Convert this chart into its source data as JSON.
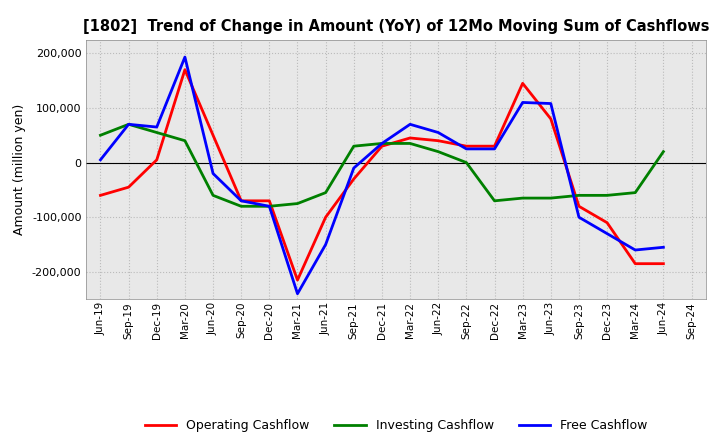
{
  "title": "[1802]  Trend of Change in Amount (YoY) of 12Mo Moving Sum of Cashflows",
  "ylabel": "Amount (million yen)",
  "xlabels": [
    "Jun-19",
    "Sep-19",
    "Dec-19",
    "Mar-20",
    "Jun-20",
    "Sep-20",
    "Dec-20",
    "Mar-21",
    "Jun-21",
    "Sep-21",
    "Dec-21",
    "Mar-22",
    "Jun-22",
    "Sep-22",
    "Dec-22",
    "Mar-23",
    "Jun-23",
    "Sep-23",
    "Dec-23",
    "Mar-24",
    "Jun-24",
    "Sep-24"
  ],
  "operating": [
    -60000,
    -45000,
    5000,
    170000,
    50000,
    -70000,
    -70000,
    -215000,
    -100000,
    -30000,
    30000,
    45000,
    40000,
    30000,
    30000,
    145000,
    80000,
    -80000,
    -110000,
    -185000,
    -185000,
    null
  ],
  "investing": [
    50000,
    70000,
    55000,
    40000,
    -60000,
    -80000,
    -80000,
    -75000,
    -55000,
    30000,
    35000,
    35000,
    20000,
    0,
    -70000,
    -65000,
    -65000,
    -60000,
    -60000,
    -55000,
    20000,
    null
  ],
  "free": [
    5000,
    70000,
    65000,
    193000,
    -20000,
    -70000,
    -80000,
    -240000,
    -150000,
    -10000,
    35000,
    70000,
    55000,
    25000,
    25000,
    110000,
    108000,
    -100000,
    -130000,
    -160000,
    -155000,
    null
  ],
  "colors": {
    "operating": "#ff0000",
    "investing": "#008000",
    "free": "#0000ff"
  },
  "ylim": [
    -250000,
    225000
  ],
  "yticks": [
    -200000,
    -100000,
    0,
    100000,
    200000
  ],
  "background": "#ffffff",
  "plot_bg": "#e8e8e8",
  "grid_color": "#bbbbbb",
  "linewidth": 2.0
}
